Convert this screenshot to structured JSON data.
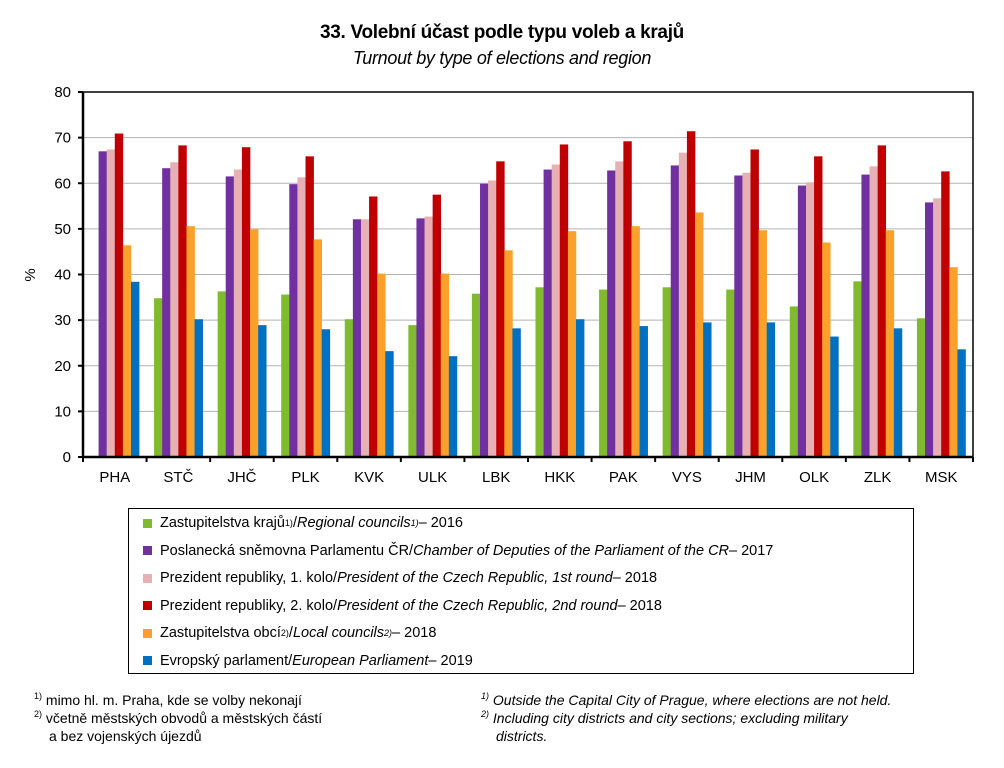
{
  "chart_data": {
    "type": "bar",
    "title": "33. Volební účast podle typu voleb a krajů",
    "subtitle": "Turnout by type of elections and region",
    "xlabel": "",
    "ylabel": "%",
    "ylim": [
      0,
      80
    ],
    "yticks": [
      0,
      10,
      20,
      30,
      40,
      50,
      60,
      70,
      80
    ],
    "grid": true,
    "legend_position": "bottom",
    "categories": [
      "PHA",
      "STČ",
      "JHČ",
      "PLK",
      "KVK",
      "ULK",
      "LBK",
      "HKK",
      "PAK",
      "VYS",
      "JHM",
      "OLK",
      "ZLK",
      "MSK"
    ],
    "series": [
      {
        "name": "Zastupitelstva krajů 1)/ Regional councils 1) – 2016",
        "color": "#7fba2f",
        "values": [
          null,
          34.8,
          36.3,
          35.6,
          30.2,
          28.9,
          35.8,
          37.2,
          36.7,
          37.2,
          36.7,
          33.0,
          38.5,
          30.4
        ]
      },
      {
        "name": "Poslanecká sněmovna Parlamentu ČR / Chamber of Deputies of the Parliament of the CR – 2017",
        "color": "#7030a0",
        "values": [
          67.0,
          63.3,
          61.5,
          59.8,
          52.1,
          52.3,
          59.9,
          63.0,
          62.8,
          63.9,
          61.7,
          59.5,
          61.9,
          55.8
        ]
      },
      {
        "name": "Prezident republiky, 1. kolo / President of the Czech Republic, 1st round – 2018",
        "color": "#e6b0b4",
        "values": [
          67.4,
          64.6,
          63.0,
          61.3,
          52.1,
          52.7,
          60.6,
          64.1,
          64.8,
          66.7,
          62.3,
          60.2,
          63.7,
          56.7
        ]
      },
      {
        "name": "Prezident republiky, 2. kolo / President of the Czech Republic, 2nd round – 2018",
        "color": "#c00000",
        "values": [
          70.9,
          68.3,
          67.9,
          65.9,
          57.1,
          57.5,
          64.8,
          68.5,
          69.2,
          71.4,
          67.4,
          65.9,
          68.3,
          62.6
        ]
      },
      {
        "name": "Zastupitelstva obcí 2) / Local councils 2) – 2018",
        "color": "#f9a12a",
        "values": [
          46.4,
          50.6,
          49.9,
          47.7,
          40.2,
          40.2,
          45.3,
          49.5,
          50.6,
          53.6,
          49.7,
          47.0,
          49.7,
          41.6
        ]
      },
      {
        "name": "Evropský parlament / European Parliament – 2019",
        "color": "#0070c0",
        "values": [
          38.4,
          30.2,
          28.9,
          28.0,
          23.2,
          22.1,
          28.2,
          30.2,
          28.7,
          29.5,
          29.5,
          26.4,
          28.2,
          23.6
        ]
      }
    ]
  },
  "legend": [
    {
      "cz": "Zastupitelstva  krajů ",
      "cz_sup": "1)",
      "sep": "/ ",
      "en": "Regional councils ",
      "en_sup": "1)",
      "year": " – 2016"
    },
    {
      "cz": "Poslanecká sněmovna  Parlamentu  ČR ",
      "cz_sup": "",
      "sep": "/ ",
      "en": "Chamber of Deputies of the Parliament of the CR",
      "en_sup": "",
      "year": " – 2017"
    },
    {
      "cz": "Prezident republiky, 1. kolo ",
      "cz_sup": "",
      "sep": "/ ",
      "en": "President of the Czech Republic, 1st round ",
      "en_sup": "",
      "year": " – 2018"
    },
    {
      "cz": "Prezident republiky, 2. kolo ",
      "cz_sup": "",
      "sep": "/ ",
      "en": "President of the Czech Republic, 2nd round ",
      "en_sup": "",
      "year": " – 2018"
    },
    {
      "cz": "Zastupitelstva  obcí ",
      "cz_sup": "2)",
      "sep": " / ",
      "en": "Local councils ",
      "en_sup": "2)",
      "year": " – 2018"
    },
    {
      "cz": "Evropský parlament  ",
      "cz_sup": "",
      "sep": "/ ",
      "en": "European Parliament",
      "en_sup": "",
      "year": " – 2019"
    }
  ],
  "footnotes": {
    "cz": [
      {
        "mark": "1)",
        "text": "mimo hl. m. Praha, kde se volby  nekonají"
      },
      {
        "mark": "2)",
        "text": "včetně městských  obvodů  a městských  částí"
      },
      {
        "mark": "",
        "text": "a bez vojenských  újezdů"
      }
    ],
    "en": [
      {
        "mark": "1)",
        "text": "Outside the Capital City of Prague,  where elections are not held."
      },
      {
        "mark": "2)",
        "text": "Including city districts and city sections; excluding military"
      },
      {
        "mark": "",
        "text": "districts."
      }
    ]
  }
}
